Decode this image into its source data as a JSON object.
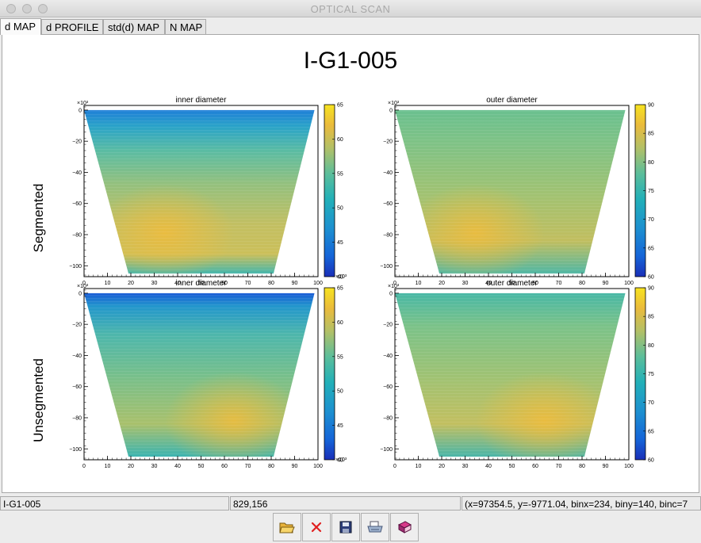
{
  "window": {
    "title": "OPTICAL SCAN"
  },
  "tabs": [
    {
      "label": "d MAP",
      "active": true
    },
    {
      "label": "d PROFILE",
      "active": false
    },
    {
      "label": "std(d) MAP",
      "active": false
    },
    {
      "label": "N MAP",
      "active": false
    }
  ],
  "canvas": {
    "title": "I-G1-005",
    "row_labels": [
      "Segmented",
      "Unsegmented"
    ]
  },
  "chart_data": [
    {
      "type": "heatmap",
      "title": "inner diameter",
      "group": "Segmented",
      "x_ticks": [
        "0",
        "10",
        "20",
        "30",
        "40",
        "50",
        "60",
        "70",
        "80",
        "90",
        "100"
      ],
      "y_ticks": [
        "0",
        "−20",
        "−40",
        "−60",
        "−80",
        "−100"
      ],
      "y_exponent": "×10³",
      "xlim": [
        0,
        100
      ],
      "ylim": [
        -107,
        3
      ],
      "color_ticks": [
        "40",
        "45",
        "50",
        "55",
        "60",
        "65"
      ],
      "color_exponent": "×10³",
      "zlim": [
        40,
        65
      ]
    },
    {
      "type": "heatmap",
      "title": "outer diameter",
      "group": "Segmented",
      "x_ticks": [
        "0",
        "10",
        "20",
        "30",
        "40",
        "50",
        "60",
        "70",
        "80",
        "90",
        "100"
      ],
      "y_ticks": [
        "0",
        "−20",
        "−40",
        "−60",
        "−80",
        "−100"
      ],
      "y_exponent": "×10³",
      "xlim": [
        0,
        100
      ],
      "ylim": [
        -107,
        3
      ],
      "color_ticks": [
        "60",
        "65",
        "70",
        "75",
        "80",
        "85",
        "90"
      ],
      "color_exponent": "",
      "zlim": [
        60,
        90
      ]
    },
    {
      "type": "heatmap",
      "title": "inner diameter",
      "group": "Unsegmented",
      "x_ticks": [
        "0",
        "10",
        "20",
        "30",
        "40",
        "50",
        "60",
        "70",
        "80",
        "90",
        "100"
      ],
      "y_ticks": [
        "0",
        "−20",
        "−40",
        "−60",
        "−80",
        "−100"
      ],
      "y_exponent": "×10³",
      "xlim": [
        0,
        100
      ],
      "ylim": [
        -107,
        3
      ],
      "color_ticks": [
        "40",
        "45",
        "50",
        "55",
        "60",
        "65"
      ],
      "color_exponent": "×10³",
      "zlim": [
        40,
        65
      ]
    },
    {
      "type": "heatmap",
      "title": "outer diameter",
      "group": "Unsegmented",
      "x_ticks": [
        "0",
        "10",
        "20",
        "30",
        "40",
        "50",
        "60",
        "70",
        "80",
        "90",
        "100"
      ],
      "y_ticks": [
        "0",
        "−20",
        "−40",
        "−60",
        "−80",
        "−100"
      ],
      "y_exponent": "×10³",
      "xlim": [
        0,
        100
      ],
      "ylim": [
        -107,
        3
      ],
      "color_ticks": [
        "60",
        "65",
        "70",
        "75",
        "80",
        "85",
        "90"
      ],
      "color_exponent": "",
      "zlim": [
        60,
        90
      ]
    }
  ],
  "status": {
    "object": "I-G1-005",
    "pixel": "829,156",
    "info": "(x=97354.5, y=-9771.04, binx=234, biny=140, binc=7"
  },
  "toolbar": [
    {
      "icon": "open-folder-icon"
    },
    {
      "icon": "close-icon",
      "color": "#e02020"
    },
    {
      "icon": "save-icon"
    },
    {
      "icon": "print-icon"
    },
    {
      "icon": "book-icon"
    }
  ]
}
